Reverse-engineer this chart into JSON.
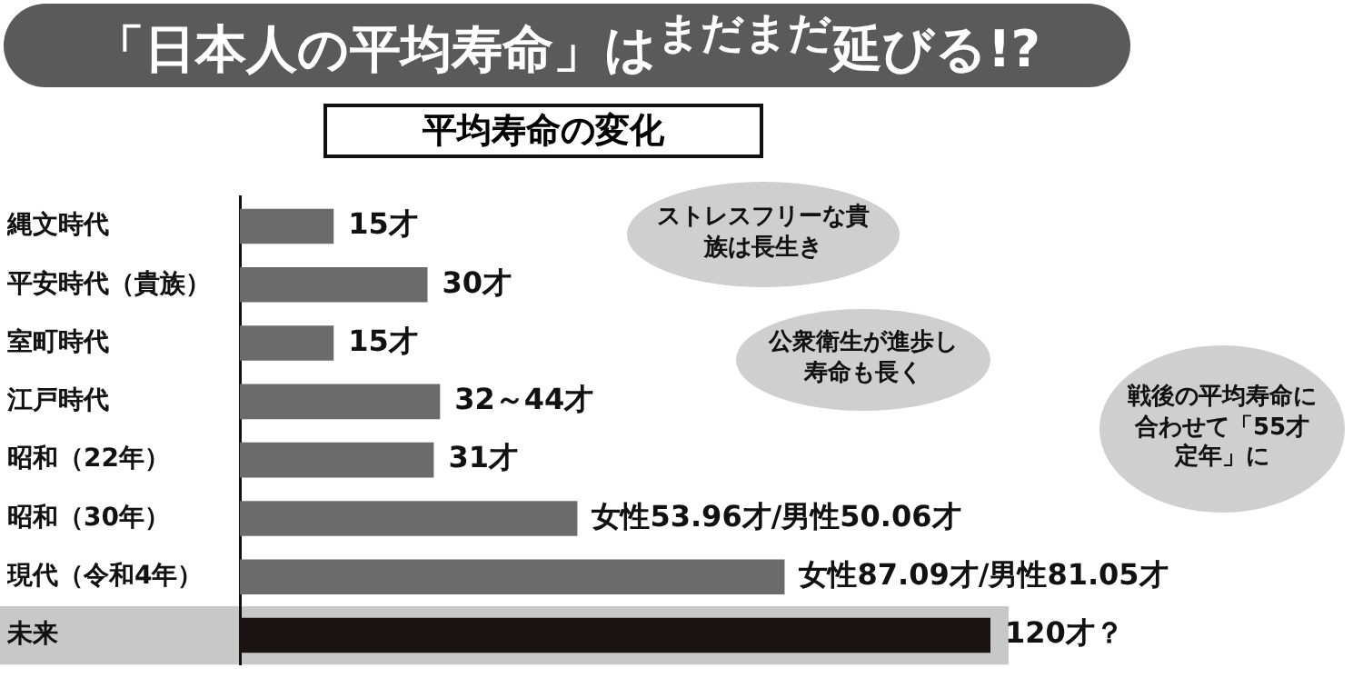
{
  "chart_data": {
    "type": "bar",
    "orientation": "horizontal",
    "title": "「日本人の平均寿命」は$^{まだまだ}$延びる!?",
    "subtitle": "平均寿命の変化",
    "categories": [
      "縄文時代",
      "平安時代（貴族）",
      "室町時代",
      "江戸時代",
      "昭和（22年）",
      "昭和（30年）",
      "現代（令和4年）",
      "未来"
    ],
    "values": [
      15,
      30,
      15,
      32,
      31,
      53.96,
      87.09,
      120
    ],
    "colors": [
      "#6b6b6b",
      "#6b6b6b",
      "#6b6b6b",
      "#6b6b6b",
      "#6b6b6b",
      "#6b6b6b",
      "#6b6b6b",
      "#1a1414"
    ],
    "value_labels": [
      "15才",
      "30才",
      "15才",
      "32～44才",
      "31才",
      "女性53.96才/男性50.06才",
      "女性87.09才/男性81.05才",
      "120才？"
    ],
    "bands": [
      {
        "axis": "y",
        "from": "未来",
        "to": "未来",
        "color": "#c8c8c8"
      }
    ],
    "annotations": [
      "ストレスフリーな貴族は長生き",
      "公衆衛生が進歩し寿命も長く",
      "戦後の平均寿命に合わせて「55才定年」に"
    ],
    "grid": false,
    "legend": false
  }
}
